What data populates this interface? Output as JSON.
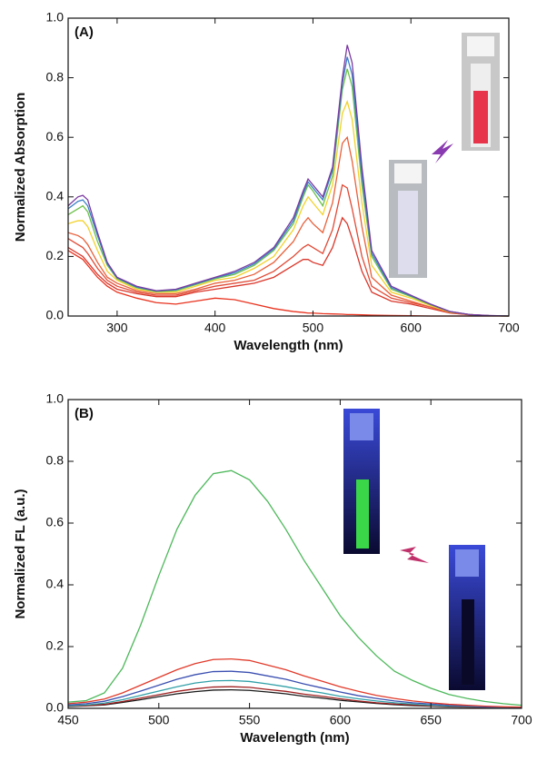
{
  "chart_data": [
    {
      "type": "line",
      "panel_label": "(A)",
      "x_label": "Wavelength (nm)",
      "y_label": "Normalized Absorption",
      "xlim": [
        250,
        700
      ],
      "xticks": [
        300,
        400,
        500,
        600,
        700
      ],
      "ylim": [
        0,
        1
      ],
      "yticks": [
        {
          "value": 0,
          "label": "0.0"
        },
        0.2,
        0.4,
        0.6,
        0.8,
        {
          "value": 1,
          "label": "1.0"
        }
      ],
      "x": [
        250,
        260,
        265,
        270,
        280,
        290,
        300,
        320,
        340,
        360,
        380,
        400,
        420,
        440,
        460,
        480,
        490,
        495,
        500,
        510,
        520,
        530,
        535,
        540,
        550,
        560,
        580,
        600,
        620,
        640,
        660,
        680,
        700
      ],
      "series": [
        {
          "color": "#e8321e",
          "values": [
            0.22,
            0.2,
            0.19,
            0.17,
            0.13,
            0.1,
            0.08,
            0.06,
            0.045,
            0.04,
            0.05,
            0.06,
            0.055,
            0.04,
            0.025,
            0.015,
            0.012,
            0.01,
            0.01,
            0.008,
            0.007,
            0.006,
            0.005,
            0.005,
            0.004,
            0.003,
            0.002,
            0.001,
            0,
            0,
            0,
            0,
            0
          ]
        },
        {
          "color": "#d9362a",
          "values": [
            0.23,
            0.21,
            0.2,
            0.18,
            0.14,
            0.11,
            0.09,
            0.075,
            0.065,
            0.065,
            0.08,
            0.09,
            0.1,
            0.11,
            0.13,
            0.17,
            0.19,
            0.19,
            0.18,
            0.17,
            0.23,
            0.33,
            0.31,
            0.26,
            0.15,
            0.08,
            0.05,
            0.04,
            0.025,
            0.01,
            0.004,
            0.001,
            0
          ]
        },
        {
          "color": "#e04a36",
          "values": [
            0.26,
            0.24,
            0.23,
            0.21,
            0.16,
            0.12,
            0.1,
            0.08,
            0.07,
            0.07,
            0.085,
            0.1,
            0.11,
            0.12,
            0.15,
            0.2,
            0.23,
            0.24,
            0.23,
            0.21,
            0.29,
            0.44,
            0.43,
            0.36,
            0.2,
            0.1,
            0.06,
            0.045,
            0.03,
            0.012,
            0.005,
            0.001,
            0
          ]
        },
        {
          "color": "#e8603a",
          "values": [
            0.28,
            0.27,
            0.26,
            0.24,
            0.18,
            0.13,
            0.11,
            0.085,
            0.075,
            0.075,
            0.09,
            0.11,
            0.12,
            0.14,
            0.18,
            0.25,
            0.31,
            0.33,
            0.31,
            0.28,
            0.38,
            0.58,
            0.6,
            0.52,
            0.3,
            0.13,
            0.07,
            0.05,
            0.03,
            0.012,
            0.005,
            0.001,
            0
          ]
        },
        {
          "color": "#f2d22a",
          "values": [
            0.31,
            0.32,
            0.32,
            0.3,
            0.22,
            0.15,
            0.12,
            0.09,
            0.08,
            0.08,
            0.1,
            0.12,
            0.13,
            0.16,
            0.2,
            0.29,
            0.37,
            0.4,
            0.38,
            0.34,
            0.44,
            0.68,
            0.72,
            0.66,
            0.38,
            0.17,
            0.08,
            0.06,
            0.035,
            0.013,
            0.005,
            0.001,
            0
          ]
        },
        {
          "color": "#6cc04a",
          "values": [
            0.34,
            0.36,
            0.37,
            0.35,
            0.25,
            0.17,
            0.125,
            0.095,
            0.082,
            0.085,
            0.105,
            0.125,
            0.14,
            0.17,
            0.22,
            0.31,
            0.4,
            0.44,
            0.42,
            0.37,
            0.47,
            0.76,
            0.83,
            0.77,
            0.44,
            0.2,
            0.09,
            0.065,
            0.038,
            0.014,
            0.005,
            0.001,
            0
          ]
        },
        {
          "color": "#3a7fc8",
          "values": [
            0.36,
            0.385,
            0.39,
            0.37,
            0.27,
            0.175,
            0.128,
            0.097,
            0.084,
            0.088,
            0.108,
            0.128,
            0.145,
            0.175,
            0.225,
            0.32,
            0.41,
            0.45,
            0.43,
            0.39,
            0.49,
            0.78,
            0.87,
            0.81,
            0.47,
            0.21,
            0.095,
            0.068,
            0.04,
            0.015,
            0.005,
            0.001,
            0
          ]
        },
        {
          "color": "#7a3aa0",
          "values": [
            0.37,
            0.4,
            0.405,
            0.39,
            0.28,
            0.18,
            0.13,
            0.1,
            0.085,
            0.09,
            0.11,
            0.13,
            0.15,
            0.18,
            0.23,
            0.33,
            0.42,
            0.46,
            0.44,
            0.4,
            0.5,
            0.8,
            0.91,
            0.85,
            0.5,
            0.22,
            0.1,
            0.07,
            0.04,
            0.015,
            0.005,
            0.002,
            0
          ]
        }
      ]
    },
    {
      "type": "line",
      "panel_label": "(B)",
      "x_label": "Wavelength (nm)",
      "y_label": "Normalized FL (a.u.)",
      "xlim": [
        450,
        700
      ],
      "xticks": [
        450,
        500,
        550,
        600,
        650,
        700
      ],
      "ylim": [
        0,
        1
      ],
      "yticks": [
        {
          "value": 0,
          "label": "0.0"
        },
        0.2,
        0.4,
        0.6,
        0.8,
        {
          "value": 1,
          "label": "1.0"
        }
      ],
      "x": [
        450,
        460,
        470,
        480,
        490,
        500,
        510,
        520,
        530,
        540,
        550,
        560,
        570,
        580,
        590,
        600,
        610,
        620,
        630,
        640,
        650,
        660,
        670,
        680,
        690,
        700
      ],
      "series": [
        {
          "color": "#1a1a1a",
          "values": [
            0.006,
            0.008,
            0.011,
            0.019,
            0.028,
            0.038,
            0.047,
            0.054,
            0.059,
            0.06,
            0.058,
            0.053,
            0.047,
            0.039,
            0.033,
            0.026,
            0.021,
            0.016,
            0.012,
            0.009,
            0.007,
            0.005,
            0.004,
            0.003,
            0.002,
            0.002
          ]
        },
        {
          "color": "#a02020",
          "values": [
            0.007,
            0.009,
            0.013,
            0.022,
            0.033,
            0.044,
            0.055,
            0.063,
            0.069,
            0.07,
            0.068,
            0.061,
            0.055,
            0.046,
            0.039,
            0.031,
            0.024,
            0.018,
            0.014,
            0.011,
            0.008,
            0.006,
            0.004,
            0.003,
            0.002,
            0.002
          ]
        },
        {
          "color": "#30a0a8",
          "values": [
            0.008,
            0.011,
            0.017,
            0.028,
            0.042,
            0.056,
            0.07,
            0.082,
            0.089,
            0.09,
            0.087,
            0.079,
            0.07,
            0.059,
            0.05,
            0.039,
            0.031,
            0.024,
            0.018,
            0.014,
            0.01,
            0.007,
            0.006,
            0.004,
            0.003,
            0.002
          ]
        },
        {
          "color": "#3a4fb0",
          "values": [
            0.011,
            0.015,
            0.023,
            0.038,
            0.056,
            0.075,
            0.094,
            0.109,
            0.119,
            0.12,
            0.116,
            0.105,
            0.094,
            0.079,
            0.066,
            0.053,
            0.041,
            0.032,
            0.024,
            0.018,
            0.014,
            0.01,
            0.008,
            0.005,
            0.004,
            0.003
          ]
        },
        {
          "color": "#e03a2a",
          "values": [
            0.015,
            0.02,
            0.03,
            0.05,
            0.075,
            0.1,
            0.125,
            0.145,
            0.158,
            0.16,
            0.155,
            0.14,
            0.125,
            0.105,
            0.088,
            0.07,
            0.055,
            0.042,
            0.032,
            0.024,
            0.018,
            0.013,
            0.01,
            0.007,
            0.005,
            0.004
          ]
        },
        {
          "color": "#4cb85a",
          "values": [
            0.02,
            0.025,
            0.05,
            0.13,
            0.27,
            0.43,
            0.58,
            0.69,
            0.76,
            0.77,
            0.74,
            0.67,
            0.58,
            0.48,
            0.39,
            0.3,
            0.23,
            0.17,
            0.12,
            0.09,
            0.065,
            0.045,
            0.032,
            0.022,
            0.015,
            0.01
          ]
        }
      ]
    }
  ]
}
